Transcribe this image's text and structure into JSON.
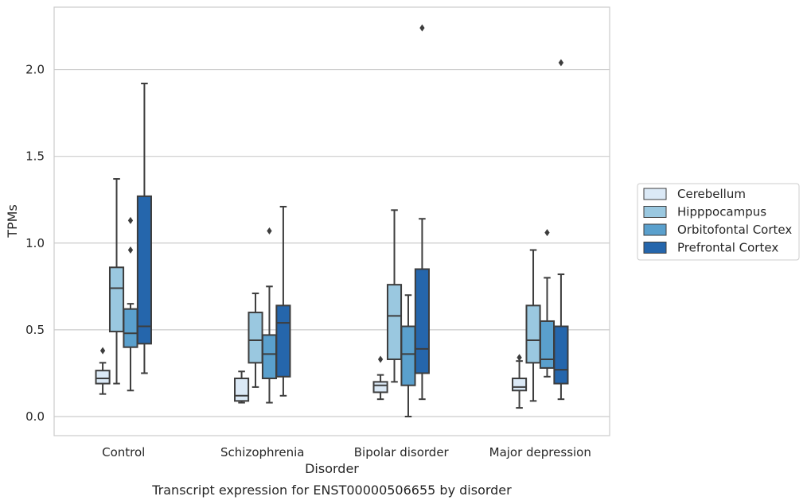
{
  "caption": "Transcript expression for ENST00000506655 by disorder",
  "chart_data": {
    "type": "boxplot",
    "xlabel": "Disorder",
    "ylabel": "TPMs",
    "ylim": [
      -0.11,
      2.36
    ],
    "yticks": [
      0.0,
      0.5,
      1.0,
      1.5,
      2.0
    ],
    "ytick_labels": [
      "0.0",
      "0.5",
      "1.0",
      "1.5",
      "2.0"
    ],
    "grid": "horizontal",
    "legend_position": "right",
    "categories": [
      "Control",
      "Schizophrenia",
      "Bipolar disorder",
      "Major depression"
    ],
    "series": [
      {
        "name": "Cerebellum",
        "color": "#dbe9f6",
        "boxes": [
          {
            "whislo": 0.13,
            "q1": 0.19,
            "med": 0.22,
            "q3": 0.265,
            "whishi": 0.31,
            "fliers": [
              0.38
            ]
          },
          {
            "whislo": 0.08,
            "q1": 0.09,
            "med": 0.12,
            "q3": 0.22,
            "whishi": 0.26,
            "fliers": []
          },
          {
            "whislo": 0.1,
            "q1": 0.14,
            "med": 0.18,
            "q3": 0.2,
            "whishi": 0.24,
            "fliers": [
              0.33
            ]
          },
          {
            "whislo": 0.05,
            "q1": 0.15,
            "med": 0.17,
            "q3": 0.22,
            "whishi": 0.32,
            "fliers": [
              0.34
            ]
          }
        ]
      },
      {
        "name": "Hipppocampus",
        "color": "#9ac8e0",
        "boxes": [
          {
            "whislo": 0.19,
            "q1": 0.49,
            "med": 0.74,
            "q3": 0.86,
            "whishi": 1.37,
            "fliers": []
          },
          {
            "whislo": 0.17,
            "q1": 0.31,
            "med": 0.44,
            "q3": 0.6,
            "whishi": 0.71,
            "fliers": []
          },
          {
            "whislo": 0.2,
            "q1": 0.33,
            "med": 0.58,
            "q3": 0.76,
            "whishi": 1.19,
            "fliers": []
          },
          {
            "whislo": 0.09,
            "q1": 0.31,
            "med": 0.44,
            "q3": 0.64,
            "whishi": 0.96,
            "fliers": []
          }
        ]
      },
      {
        "name": "Orbitofontal Cortex",
        "color": "#5aa0cd",
        "boxes": [
          {
            "whislo": 0.15,
            "q1": 0.4,
            "med": 0.48,
            "q3": 0.62,
            "whishi": 0.65,
            "fliers": [
              0.96,
              1.13
            ]
          },
          {
            "whislo": 0.08,
            "q1": 0.22,
            "med": 0.36,
            "q3": 0.47,
            "whishi": 0.75,
            "fliers": [
              1.07
            ]
          },
          {
            "whislo": 0.0,
            "q1": 0.18,
            "med": 0.36,
            "q3": 0.52,
            "whishi": 0.7,
            "fliers": []
          },
          {
            "whislo": 0.23,
            "q1": 0.28,
            "med": 0.33,
            "q3": 0.55,
            "whishi": 0.8,
            "fliers": [
              1.06
            ]
          }
        ]
      },
      {
        "name": "Prefrontal Cortex",
        "color": "#2566ac",
        "boxes": [
          {
            "whislo": 0.25,
            "q1": 0.42,
            "med": 0.52,
            "q3": 1.27,
            "whishi": 1.92,
            "fliers": []
          },
          {
            "whislo": 0.12,
            "q1": 0.23,
            "med": 0.54,
            "q3": 0.64,
            "whishi": 1.21,
            "fliers": []
          },
          {
            "whislo": 0.1,
            "q1": 0.25,
            "med": 0.39,
            "q3": 0.85,
            "whishi": 1.14,
            "fliers": [
              2.24
            ]
          },
          {
            "whislo": 0.1,
            "q1": 0.19,
            "med": 0.27,
            "q3": 0.52,
            "whishi": 0.82,
            "fliers": [
              2.04
            ]
          }
        ]
      }
    ]
  }
}
